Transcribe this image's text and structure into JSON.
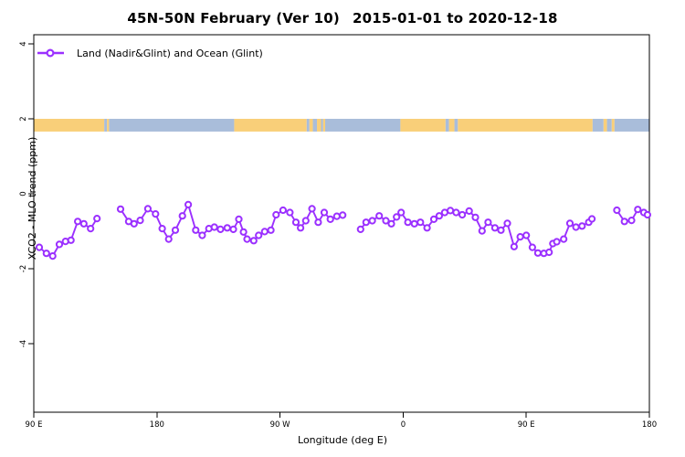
{
  "title": {
    "part1": "45N-50N February (Ver 10)",
    "part2": "2015-01-01 to 2020-12-18"
  },
  "legend": {
    "label": "Land (Nadir&Glint) and Ocean (Glint)"
  },
  "axes": {
    "x": {
      "label": "Longitude (deg E)",
      "ticks": [
        {
          "lon": 90,
          "label": "90 E"
        },
        {
          "lon": 180,
          "label": "180"
        },
        {
          "lon": 270,
          "label": "90 W"
        },
        {
          "lon": 360,
          "label": "0"
        },
        {
          "lon": 450,
          "label": "90 E"
        },
        {
          "lon": 540,
          "label": "180"
        }
      ]
    },
    "y": {
      "label": "XCO2 - MLO trend (ppm)",
      "ticks": [
        {
          "value": 4,
          "label": "4"
        },
        {
          "value": 2,
          "label": "2"
        },
        {
          "value": 0,
          "label": "0"
        },
        {
          "value": -2,
          "label": "-2"
        },
        {
          "value": -4,
          "label": "-4"
        }
      ]
    }
  },
  "colors": {
    "series": "#9b30ff",
    "land_band": "#f9cf79",
    "ocean_band": "#a9bdda",
    "axis": "#000000",
    "background": "#ffffff"
  },
  "chart_data": {
    "type": "line",
    "title": "45N-50N February (Ver 10)  2015-01-01 to 2020-12-18",
    "xlabel": "Longitude (deg E)",
    "ylabel": "XCO2 - MLO trend (ppm)",
    "x_axis_note": "longitude wraps: 90E eastward through 180, 90W, 0, 90E to 180",
    "xlim_deg_east": [
      90,
      540
    ],
    "ylim": [
      -6,
      4.2
    ],
    "grid": false,
    "legend_position": "top-left",
    "marker": "open-circle",
    "series": [
      {
        "name": "Land (Nadir&Glint) and Ocean (Glint)",
        "color": "#9b30ff",
        "segments": [
          [
            [
              94.0,
              -1.43
            ],
            [
              99.2,
              -1.59
            ],
            [
              103.8,
              -1.66
            ],
            [
              108.7,
              -1.35
            ],
            [
              113.2,
              -1.27
            ],
            [
              117.2,
              -1.24
            ],
            [
              122.1,
              -0.74
            ],
            [
              126.6,
              -0.8
            ],
            [
              131.5,
              -0.93
            ],
            [
              136.2,
              -0.66
            ]
          ],
          [
            [
              153.4,
              -0.41
            ],
            [
              159.4,
              -0.74
            ],
            [
              163.3,
              -0.8
            ],
            [
              167.8,
              -0.71
            ],
            [
              173.4,
              -0.4
            ],
            [
              179.0,
              -0.54
            ],
            [
              183.9,
              -0.93
            ],
            [
              188.6,
              -1.21
            ],
            [
              193.5,
              -0.97
            ],
            [
              198.6,
              -0.59
            ],
            [
              202.9,
              -0.29
            ],
            [
              208.4,
              -0.97
            ],
            [
              213.1,
              -1.11
            ],
            [
              218.0,
              -0.93
            ],
            [
              222.0,
              -0.89
            ],
            [
              226.5,
              -0.95
            ],
            [
              231.4,
              -0.91
            ],
            [
              235.9,
              -0.95
            ],
            [
              239.9,
              -0.68
            ],
            [
              243.3,
              -1.02
            ],
            [
              245.9,
              -1.21
            ],
            [
              250.8,
              -1.25
            ],
            [
              254.4,
              -1.11
            ],
            [
              258.8,
              -1.01
            ],
            [
              263.3,
              -0.97
            ],
            [
              267.1,
              -0.56
            ],
            [
              272.2,
              -0.44
            ],
            [
              277.2,
              -0.5
            ],
            [
              281.6,
              -0.76
            ],
            [
              285.0,
              -0.91
            ],
            [
              288.8,
              -0.72
            ],
            [
              293.4,
              -0.4
            ],
            [
              297.9,
              -0.76
            ],
            [
              302.3,
              -0.5
            ],
            [
              306.8,
              -0.68
            ],
            [
              311.5,
              -0.6
            ],
            [
              315.8,
              -0.57
            ]
          ],
          [
            [
              328.9,
              -0.95
            ],
            [
              332.9,
              -0.76
            ],
            [
              337.4,
              -0.72
            ],
            [
              342.5,
              -0.59
            ],
            [
              347.4,
              -0.72
            ],
            [
              351.4,
              -0.8
            ],
            [
              355.2,
              -0.62
            ],
            [
              358.5,
              -0.5
            ],
            [
              363.5,
              -0.76
            ],
            [
              368.2,
              -0.8
            ],
            [
              372.6,
              -0.76
            ],
            [
              377.5,
              -0.91
            ],
            [
              382.4,
              -0.68
            ],
            [
              386.4,
              -0.59
            ],
            [
              390.4,
              -0.5
            ],
            [
              394.5,
              -0.45
            ],
            [
              398.7,
              -0.5
            ],
            [
              403.2,
              -0.56
            ],
            [
              408.3,
              -0.46
            ],
            [
              412.8,
              -0.63
            ],
            [
              417.7,
              -0.99
            ],
            [
              422.1,
              -0.76
            ],
            [
              427.1,
              -0.91
            ],
            [
              431.5,
              -0.97
            ],
            [
              436.2,
              -0.79
            ],
            [
              441.1,
              -1.41
            ],
            [
              445.6,
              -1.15
            ],
            [
              450.0,
              -1.11
            ],
            [
              454.5,
              -1.43
            ],
            [
              458.5,
              -1.58
            ],
            [
              462.9,
              -1.59
            ],
            [
              466.7,
              -1.56
            ],
            [
              469.4,
              -1.33
            ],
            [
              472.3,
              -1.28
            ],
            [
              477.4,
              -1.21
            ],
            [
              481.9,
              -0.79
            ],
            [
              486.3,
              -0.89
            ],
            [
              490.8,
              -0.86
            ],
            [
              495.7,
              -0.76
            ],
            [
              498.0,
              -0.67
            ]
          ],
          [
            [
              516.2,
              -0.44
            ],
            [
              521.8,
              -0.74
            ],
            [
              527.0,
              -0.71
            ],
            [
              531.5,
              -0.42
            ],
            [
              535.9,
              -0.5
            ],
            [
              538.6,
              -0.56
            ]
          ]
        ]
      }
    ],
    "map_band": {
      "description": "land/ocean strip along latitude band drawn near y=2",
      "y_value_range": [
        1.66,
        2.0
      ],
      "land_color": "#f9cf79",
      "ocean_color": "#a9bdda",
      "segments": [
        {
          "from": 90.0,
          "to": 141.5,
          "type": "land"
        },
        {
          "from": 141.5,
          "to": 143.5,
          "type": "ocean"
        },
        {
          "from": 143.5,
          "to": 145.0,
          "type": "land"
        },
        {
          "from": 145.0,
          "to": 236.5,
          "type": "ocean"
        },
        {
          "from": 236.5,
          "to": 289.5,
          "type": "land"
        },
        {
          "from": 289.5,
          "to": 291.5,
          "type": "ocean"
        },
        {
          "from": 291.5,
          "to": 294.0,
          "type": "land"
        },
        {
          "from": 294.0,
          "to": 297.0,
          "type": "ocean"
        },
        {
          "from": 297.0,
          "to": 300.0,
          "type": "land"
        },
        {
          "from": 300.0,
          "to": 301.5,
          "type": "ocean"
        },
        {
          "from": 301.5,
          "to": 303.0,
          "type": "land"
        },
        {
          "from": 303.0,
          "to": 358.0,
          "type": "ocean"
        },
        {
          "from": 358.0,
          "to": 391.0,
          "type": "land"
        },
        {
          "from": 391.0,
          "to": 393.5,
          "type": "ocean"
        },
        {
          "from": 393.5,
          "to": 397.5,
          "type": "land"
        },
        {
          "from": 397.5,
          "to": 400.0,
          "type": "ocean"
        },
        {
          "from": 400.0,
          "to": 498.5,
          "type": "land"
        },
        {
          "from": 498.5,
          "to": 506.5,
          "type": "ocean"
        },
        {
          "from": 506.5,
          "to": 509.0,
          "type": "land"
        },
        {
          "from": 509.0,
          "to": 512.5,
          "type": "ocean"
        },
        {
          "from": 512.5,
          "to": 514.5,
          "type": "land"
        },
        {
          "from": 514.5,
          "to": 540.3,
          "type": "ocean"
        }
      ]
    }
  }
}
